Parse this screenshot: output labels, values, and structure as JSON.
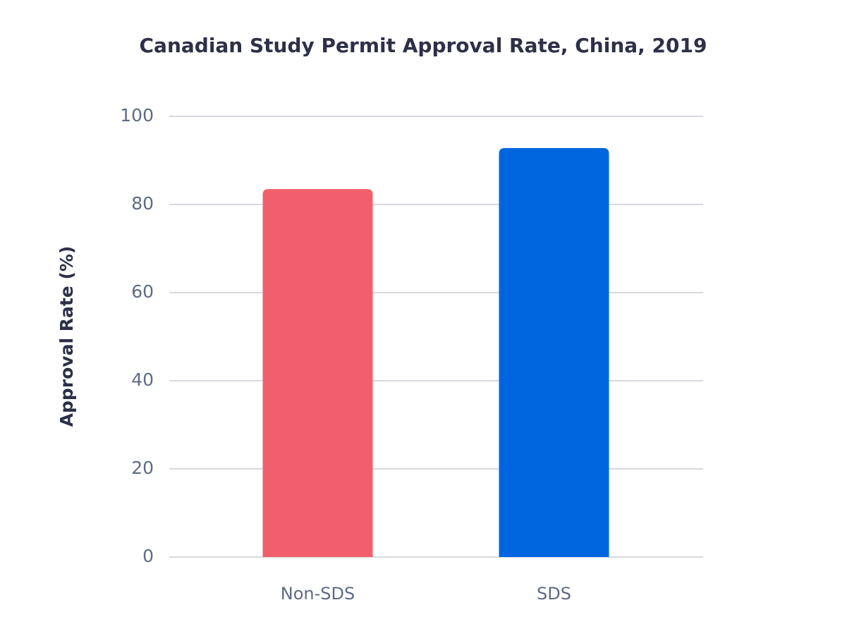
{
  "chart_data": {
    "type": "bar",
    "title": "Canadian Study Permit Approval Rate, China, 2019",
    "y_label": "Approval Rate (%)",
    "categories": [
      "Non-SDS",
      "SDS"
    ],
    "values": [
      83.5,
      92.8
    ],
    "colors": [
      "#f25f6c",
      "#0066e0"
    ],
    "ylim": [
      0,
      100
    ],
    "yticks": [
      0,
      20,
      40,
      60,
      80,
      100
    ],
    "grid": true
  }
}
